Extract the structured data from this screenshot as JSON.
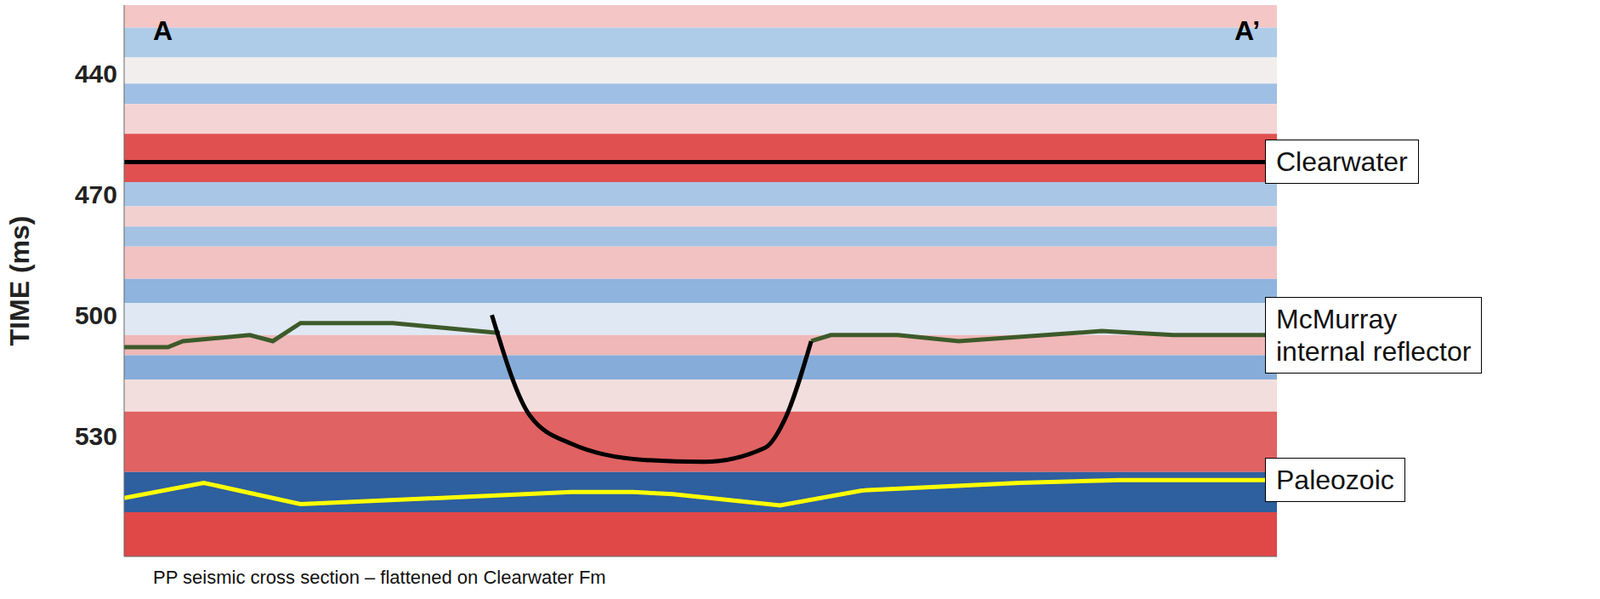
{
  "chart_data": {
    "type": "line",
    "y_label": "TIME (ms)",
    "caption": "PP seismic cross section – flattened on Clearwater Fm",
    "section_start": "A",
    "section_end": "A’",
    "xlim": [
      0,
      1000
    ],
    "ylim": [
      560,
      423
    ],
    "yticks": [
      440,
      470,
      500,
      530
    ],
    "tick_labels": "y",
    "grid": false,
    "series": [
      {
        "name": "Clearwater",
        "color": "#000000",
        "x": [
          0,
          1000
        ],
        "values": [
          462,
          462
        ]
      },
      {
        "name": "McMurray internal reflector",
        "color": "#3d5a2a",
        "x": [
          0,
          38,
          51,
          109,
          129,
          153,
          233,
          326,
          326,
          596,
          613,
          671,
          724,
          848,
          910,
          1000
        ],
        "values": [
          508,
          508,
          506.5,
          505,
          506.5,
          502,
          502,
          504.5,
          null,
          506.5,
          505,
          505,
          506.5,
          504,
          505,
          505
        ]
      },
      {
        "name": "Paleozoic",
        "color": "#ffff00",
        "x": [
          0,
          69,
          153,
          388,
          441,
          476,
          569,
          640,
          777,
          865,
          1000
        ],
        "values": [
          545.5,
          541.7,
          547,
          544,
          544,
          544.5,
          547.3,
          543.6,
          541.7,
          541,
          541
        ]
      }
    ],
    "channel": {
      "color": "#000000",
      "x": [
        319,
        352,
        388,
        450,
        503,
        556,
        573,
        596
      ],
      "values": [
        500,
        525,
        532,
        536,
        536.5,
        533,
        526,
        506.5
      ]
    },
    "amplitude_bands": [
      {
        "from": 423,
        "to": 428.6,
        "color": "#f4c6c6"
      },
      {
        "from": 428.6,
        "to": 436,
        "color": "#aecbe8"
      },
      {
        "from": 436,
        "to": 442.5,
        "color": "#f2eeee"
      },
      {
        "from": 442.5,
        "to": 447.6,
        "color": "#9fc0e4"
      },
      {
        "from": 447.6,
        "to": 455,
        "color": "#f4d4d4"
      },
      {
        "from": 455,
        "to": 467,
        "color": "#e05050"
      },
      {
        "from": 467,
        "to": 473,
        "color": "#a9c6e6"
      },
      {
        "from": 473,
        "to": 478,
        "color": "#f3d0d0"
      },
      {
        "from": 478,
        "to": 483,
        "color": "#a4c2e4"
      },
      {
        "from": 483,
        "to": 491,
        "color": "#f2c2c2"
      },
      {
        "from": 491,
        "to": 497,
        "color": "#8fb4dd"
      },
      {
        "from": 497,
        "to": 505,
        "color": "#dfe8f3"
      },
      {
        "from": 505,
        "to": 510,
        "color": "#f0b8b8"
      },
      {
        "from": 510,
        "to": 516,
        "color": "#86acd9"
      },
      {
        "from": 516,
        "to": 524,
        "color": "#f3dede"
      },
      {
        "from": 524,
        "to": 539,
        "color": "#e06262"
      },
      {
        "from": 539,
        "to": 549,
        "color": "#2e5f9e"
      },
      {
        "from": 549,
        "to": 560,
        "color": "#e04848"
      }
    ]
  }
}
